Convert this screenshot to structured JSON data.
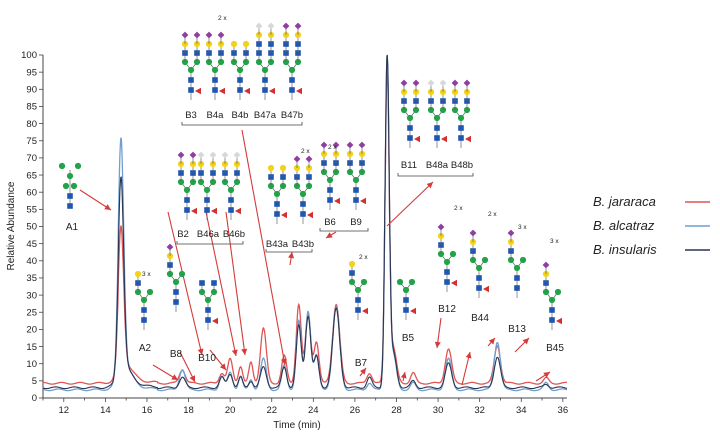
{
  "chart_data": {
    "type": "line",
    "xlabel": "Time (min)",
    "ylabel": "Relative Abundance",
    "xlim": [
      11,
      36.2
    ],
    "ylim": [
      0,
      100
    ],
    "xticks": [
      12,
      14,
      16,
      18,
      20,
      22,
      24,
      26,
      28,
      30,
      32,
      34,
      36
    ],
    "yticks": [
      0,
      5,
      10,
      15,
      20,
      25,
      30,
      35,
      40,
      45,
      50,
      55,
      60,
      65,
      70,
      75,
      80,
      85,
      90,
      95,
      100
    ],
    "legend_position": "right",
    "series": [
      {
        "name": "B. jararaca",
        "color": "#e05555",
        "baseline": 4.3,
        "peaks": [
          [
            14.75,
            40,
            0.13
          ],
          [
            14.95,
            4,
            0.35
          ],
          [
            17.7,
            4,
            0.14
          ],
          [
            19.6,
            3,
            0.12
          ],
          [
            20.0,
            7,
            0.12
          ],
          [
            20.5,
            5,
            0.1
          ],
          [
            21.0,
            6,
            0.1
          ],
          [
            21.6,
            16,
            0.14
          ],
          [
            22.6,
            8,
            0.12
          ],
          [
            23.3,
            23,
            0.12
          ],
          [
            23.75,
            20,
            0.13
          ],
          [
            24.15,
            12,
            0.12
          ],
          [
            25.1,
            23,
            0.17
          ],
          [
            26.7,
            3,
            0.12
          ],
          [
            27.55,
            90,
            0.1
          ],
          [
            27.85,
            10,
            0.15
          ],
          [
            28.8,
            3,
            0.12
          ],
          [
            30.5,
            10,
            0.15
          ],
          [
            32.85,
            11,
            0.15
          ],
          [
            35.2,
            1.5,
            0.12
          ]
        ]
      },
      {
        "name": "B. alcatraz",
        "color": "#6f9fd0",
        "baseline": 2.4,
        "peaks": [
          [
            14.75,
            67,
            0.13
          ],
          [
            14.95,
            5,
            0.35
          ],
          [
            17.7,
            6,
            0.14
          ],
          [
            19.6,
            4,
            0.12
          ],
          [
            20.0,
            5,
            0.12
          ],
          [
            20.5,
            4,
            0.1
          ],
          [
            21.0,
            3,
            0.1
          ],
          [
            21.6,
            9,
            0.14
          ],
          [
            22.6,
            7,
            0.12
          ],
          [
            23.3,
            20,
            0.12
          ],
          [
            23.75,
            23,
            0.13
          ],
          [
            24.15,
            10,
            0.12
          ],
          [
            25.1,
            24,
            0.17
          ],
          [
            26.7,
            2,
            0.12
          ],
          [
            27.55,
            96,
            0.1
          ],
          [
            27.85,
            10,
            0.15
          ],
          [
            28.8,
            2,
            0.12
          ],
          [
            30.5,
            9,
            0.15
          ],
          [
            32.85,
            14,
            0.15
          ],
          [
            35.2,
            2,
            0.12
          ]
        ]
      },
      {
        "name": "B. insularis",
        "color": "#2a3550",
        "baseline": 3.0,
        "peaks": [
          [
            14.75,
            56,
            0.13
          ],
          [
            14.95,
            4,
            0.35
          ],
          [
            17.7,
            3,
            0.14
          ],
          [
            19.6,
            3,
            0.12
          ],
          [
            20.0,
            4,
            0.12
          ],
          [
            20.5,
            3,
            0.1
          ],
          [
            21.0,
            2,
            0.1
          ],
          [
            21.6,
            6,
            0.14
          ],
          [
            22.6,
            6,
            0.12
          ],
          [
            23.3,
            18,
            0.12
          ],
          [
            23.75,
            21,
            0.13
          ],
          [
            24.15,
            9,
            0.12
          ],
          [
            25.1,
            23,
            0.17
          ],
          [
            26.7,
            3,
            0.12
          ],
          [
            27.55,
            96,
            0.1
          ],
          [
            27.85,
            10,
            0.15
          ],
          [
            28.8,
            2,
            0.12
          ],
          [
            30.5,
            7,
            0.15
          ],
          [
            32.85,
            9,
            0.15
          ],
          [
            35.2,
            1,
            0.12
          ]
        ]
      }
    ],
    "annotations": {
      "peak_labels": [
        {
          "id": "a1",
          "text": "A1"
        },
        {
          "id": "a2",
          "text": "A2"
        },
        {
          "id": "b8",
          "text": "B8"
        },
        {
          "id": "b10",
          "text": "B10"
        },
        {
          "id": "b7",
          "text": "B7"
        },
        {
          "id": "b5",
          "text": "B5"
        },
        {
          "id": "b12",
          "text": "B12"
        },
        {
          "id": "b44",
          "text": "B44"
        },
        {
          "id": "b13",
          "text": "B13"
        },
        {
          "id": "b45",
          "text": "B45"
        }
      ],
      "group_labels": [
        {
          "id": "g1",
          "labels": [
            "B3",
            "B4a",
            "B4b",
            "B47a",
            "B47b"
          ]
        },
        {
          "id": "g2",
          "labels": [
            "B2",
            "B46a",
            "B46b"
          ]
        },
        {
          "id": "g3",
          "labels": [
            "B43a",
            "B43b"
          ]
        },
        {
          "id": "g4",
          "labels": [
            "B6",
            "B9"
          ]
        },
        {
          "id": "g5",
          "labels": [
            "B11",
            "B48a",
            "B48b"
          ]
        }
      ],
      "multiplier_labels": [
        "2 x",
        "3 x"
      ]
    },
    "glycan_symbol_colors": {
      "GlcNAc": "#1f56b0",
      "Man": "#22a34a",
      "Gal": "#f2d21b",
      "NeuAc": "#8e3fa0",
      "Fuc": "#d62f2f",
      "unknown": "#d8d8d8"
    }
  }
}
